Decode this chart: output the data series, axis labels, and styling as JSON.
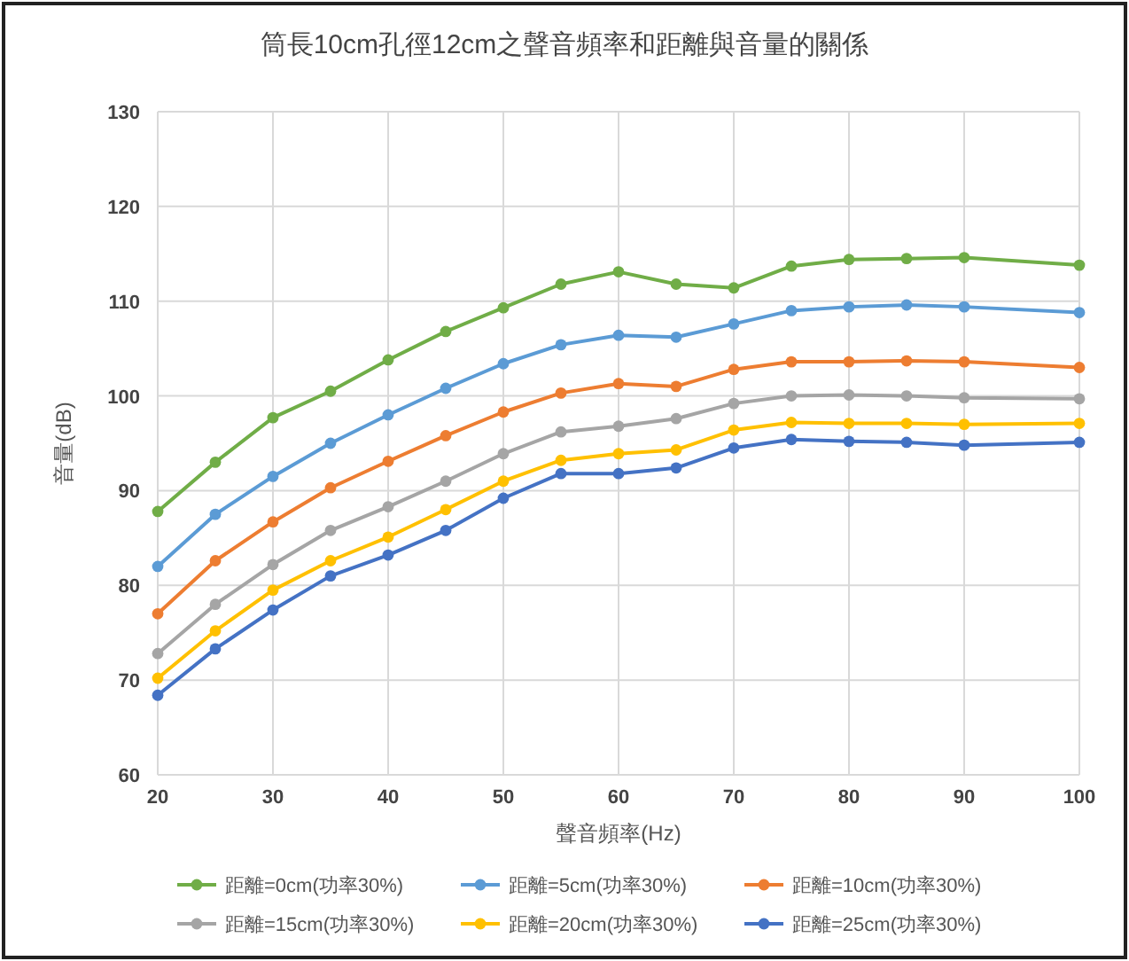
{
  "chart_data": {
    "type": "line",
    "title": "筒長10cm孔徑12cm之聲音頻率和距離與音量的關係",
    "xlabel": "聲音頻率(Hz)",
    "ylabel": "音量(dB)",
    "x": [
      20,
      25,
      30,
      35,
      40,
      45,
      50,
      55,
      60,
      65,
      70,
      75,
      80,
      85,
      90,
      100
    ],
    "xlim": [
      20,
      100
    ],
    "xticks": [
      20,
      30,
      40,
      50,
      60,
      70,
      80,
      90,
      100
    ],
    "ylim": [
      60,
      130
    ],
    "yticks": [
      60,
      70,
      80,
      90,
      100,
      110,
      120,
      130
    ],
    "grid": true,
    "legend": "bottom",
    "marker": "circle",
    "line_style": "solid",
    "series": [
      {
        "name": "距離=0cm(功率30%)",
        "color": "#70ad47",
        "values": [
          87.8,
          93,
          97.7,
          100.5,
          103.8,
          106.8,
          109.3,
          111.8,
          113.1,
          111.8,
          111.4,
          113.7,
          114.4,
          114.5,
          114.6,
          113.8
        ]
      },
      {
        "name": "距離=5cm(功率30%)",
        "color": "#5b9bd5",
        "values": [
          82,
          87.5,
          91.5,
          95,
          98,
          100.8,
          103.4,
          105.4,
          106.4,
          106.2,
          107.6,
          109,
          109.4,
          109.6,
          109.4,
          108.8
        ]
      },
      {
        "name": "距離=10cm(功率30%)",
        "color": "#ed7d31",
        "values": [
          77,
          82.6,
          86.7,
          90.3,
          93.1,
          95.8,
          98.3,
          100.3,
          101.3,
          101,
          102.8,
          103.6,
          103.6,
          103.7,
          103.6,
          103
        ]
      },
      {
        "name": "距離=15cm(功率30%)",
        "color": "#a5a5a5",
        "values": [
          72.8,
          78,
          82.2,
          85.8,
          88.3,
          91,
          93.9,
          96.2,
          96.8,
          97.6,
          99.2,
          100,
          100.1,
          100,
          99.8,
          99.7
        ]
      },
      {
        "name": "距離=20cm(功率30%)",
        "color": "#ffc000",
        "values": [
          70.2,
          75.2,
          79.5,
          82.6,
          85.1,
          88,
          91,
          93.2,
          93.9,
          94.3,
          96.4,
          97.2,
          97.1,
          97.1,
          97,
          97.1
        ]
      },
      {
        "name": "距離=25cm(功率30%)",
        "color": "#4472c4",
        "values": [
          68.4,
          73.3,
          77.4,
          81,
          83.2,
          85.8,
          89.2,
          91.8,
          91.8,
          92.4,
          94.5,
          95.4,
          95.2,
          95.1,
          94.8,
          95.1
        ]
      }
    ]
  }
}
